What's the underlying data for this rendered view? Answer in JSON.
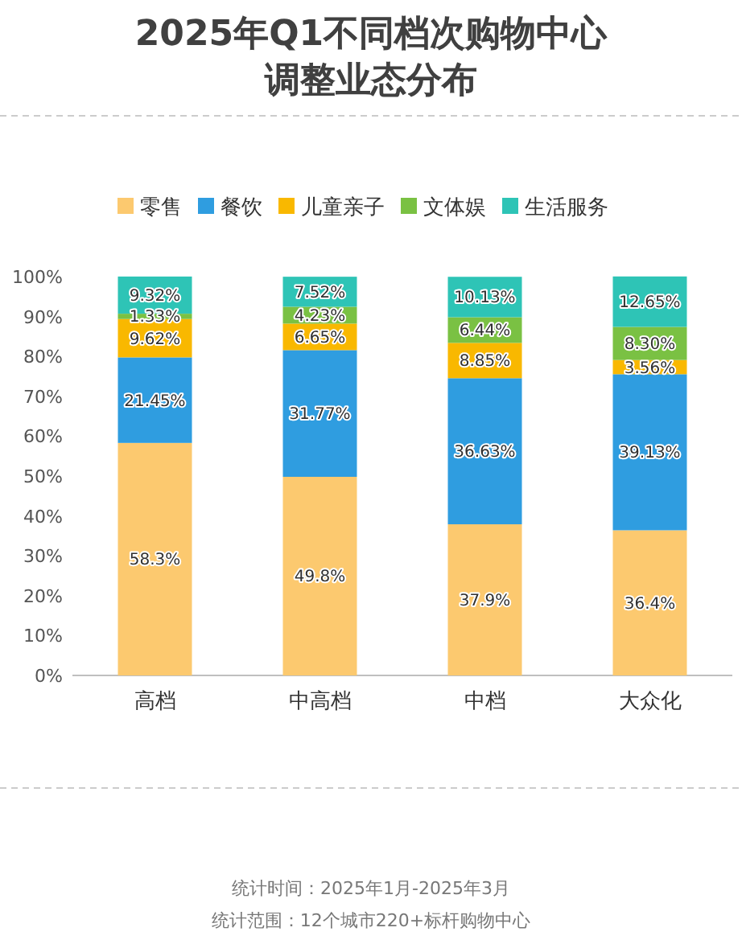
{
  "chart_data": {
    "type": "bar",
    "stacked": true,
    "title": "2025年Q1不同档次购物中心调整业态分布",
    "categories": [
      "高档",
      "中高档",
      "中档",
      "大众化"
    ],
    "series": [
      {
        "name": "零售",
        "color": "#fcc96f",
        "values": [
          58.3,
          49.8,
          37.9,
          36.4
        ],
        "value_labels": [
          "58.3%",
          "49.8%",
          "37.9%",
          "36.4%"
        ]
      },
      {
        "name": "餐饮",
        "color": "#2f9de0",
        "values": [
          21.45,
          31.77,
          36.63,
          39.13
        ],
        "value_labels": [
          "21.45%",
          "31.77%",
          "36.63%",
          "39.13%"
        ]
      },
      {
        "name": "儿童亲子",
        "color": "#f9b800",
        "values": [
          9.62,
          6.65,
          8.85,
          3.56
        ],
        "value_labels": [
          "9.62%",
          "6.65%",
          "8.85%",
          "3.56%"
        ]
      },
      {
        "name": "文体娱",
        "color": "#7ac143",
        "values": [
          1.33,
          4.23,
          6.44,
          8.3
        ],
        "value_labels": [
          "1.33%",
          "4.23%",
          "6.44%",
          "8.30%"
        ]
      },
      {
        "name": "生活服务",
        "color": "#2ec4b6",
        "values": [
          9.32,
          7.52,
          10.13,
          12.65
        ],
        "value_labels": [
          "9.32%",
          "7.52%",
          "10.13%",
          "12.65%"
        ]
      }
    ],
    "ylim": [
      0,
      100
    ],
    "yticks": [
      {
        "value": 0,
        "label": "0%"
      },
      {
        "value": 10,
        "label": "10%"
      },
      {
        "value": 20,
        "label": "20%"
      },
      {
        "value": 30,
        "label": "30%"
      },
      {
        "value": 40,
        "label": "40%"
      },
      {
        "value": 50,
        "label": "50%"
      },
      {
        "value": 60,
        "label": "60%"
      },
      {
        "value": 70,
        "label": "70%"
      },
      {
        "value": 80,
        "label": "80%"
      },
      {
        "value": 90,
        "label": "90%"
      },
      {
        "value": 100,
        "label": "100%"
      }
    ],
    "legend": "top",
    "annotations": [
      "统计时间：2025年1月-2025年3月",
      "统计范围：12个城市220+标杆购物中心"
    ]
  }
}
